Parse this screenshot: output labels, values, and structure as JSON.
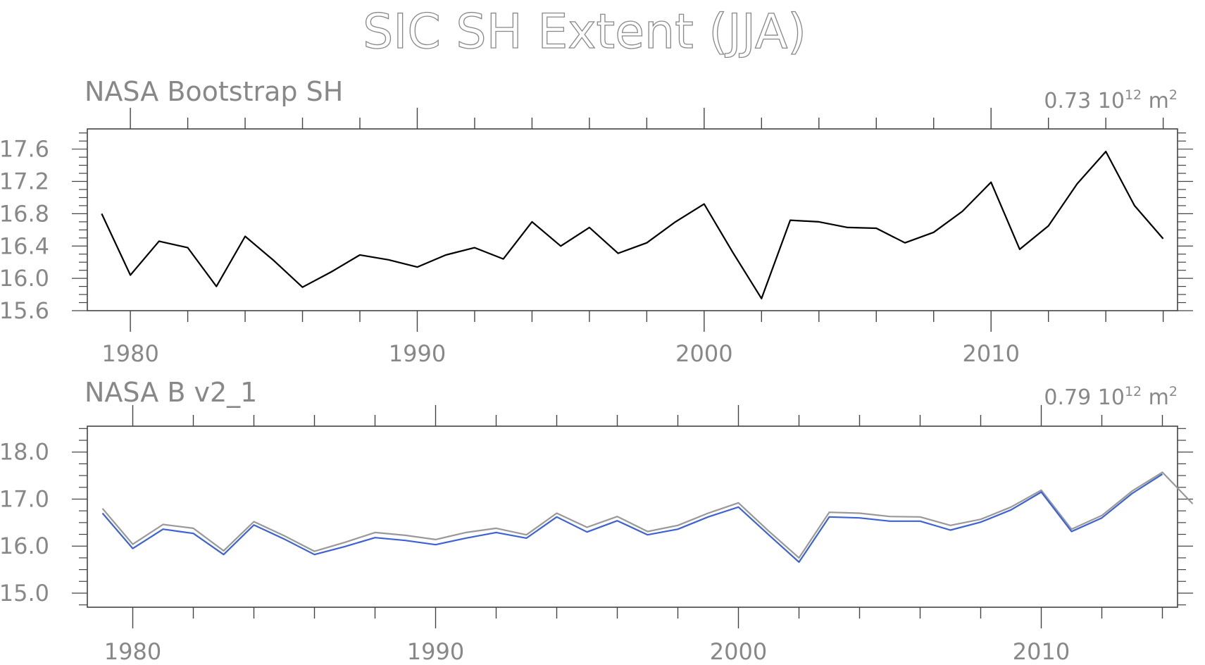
{
  "title": "SIC SH Extent (JJA)",
  "chart_data": [
    {
      "type": "line",
      "title": "NASA Bootstrap SH",
      "annotation": {
        "value": "0.73",
        "unit_base": "10",
        "unit_exp": "12",
        "unit_tail": "m",
        "unit_tail_exp": "2"
      },
      "xlim": [
        1978.5,
        2016.5
      ],
      "ylim": [
        15.6,
        17.85
      ],
      "x_ticks": [
        1980,
        1990,
        2000,
        2010
      ],
      "y_ticks": [
        "15.6",
        "16.0",
        "16.4",
        "16.8",
        "17.2",
        "17.6"
      ],
      "series": [
        {
          "color": "#000000",
          "x": [
            1979,
            1980,
            1981,
            1982,
            1983,
            1984,
            1985,
            1986,
            1987,
            1988,
            1989,
            1990,
            1991,
            1992,
            1993,
            1994,
            1995,
            1996,
            1997,
            1998,
            1999,
            2000,
            2001,
            2002,
            2003,
            2004,
            2005,
            2006,
            2007,
            2008,
            2009,
            2010,
            2011,
            2012,
            2013,
            2014,
            2015,
            2016
          ],
          "values": [
            16.8,
            16.04,
            16.46,
            16.38,
            15.9,
            16.52,
            16.22,
            15.89,
            16.08,
            16.29,
            16.23,
            16.14,
            16.29,
            16.38,
            16.24,
            16.7,
            16.4,
            16.63,
            16.31,
            16.44,
            16.7,
            16.92,
            16.32,
            15.75,
            16.72,
            16.7,
            16.63,
            16.62,
            16.44,
            16.57,
            16.83,
            17.19,
            16.36,
            16.65,
            17.17,
            17.57,
            16.9,
            16.49
          ]
        }
      ]
    },
    {
      "type": "line",
      "title": "NASA B v2_1",
      "annotation": {
        "value": "0.79",
        "unit_base": "10",
        "unit_exp": "12",
        "unit_tail": "m",
        "unit_tail_exp": "2"
      },
      "xlim": [
        1978.5,
        2014.5
      ],
      "ylim": [
        14.7,
        18.55
      ],
      "x_ticks": [
        1980,
        1990,
        2000,
        2010
      ],
      "y_ticks": [
        "15.0",
        "16.0",
        "17.0",
        "18.0"
      ],
      "series": [
        {
          "color": "#999999",
          "x": [
            1979,
            1980,
            1981,
            1982,
            1983,
            1984,
            1985,
            1986,
            1987,
            1988,
            1989,
            1990,
            1991,
            1992,
            1993,
            1994,
            1995,
            1996,
            1997,
            1998,
            1999,
            2000,
            2001,
            2002,
            2003,
            2004,
            2005,
            2006,
            2007,
            2008,
            2009,
            2010,
            2011,
            2012,
            2013,
            2014,
            2015
          ],
          "values": [
            16.8,
            16.04,
            16.46,
            16.38,
            15.9,
            16.52,
            16.22,
            15.89,
            16.08,
            16.29,
            16.23,
            16.14,
            16.29,
            16.38,
            16.24,
            16.7,
            16.4,
            16.63,
            16.31,
            16.44,
            16.7,
            16.92,
            16.32,
            15.75,
            16.72,
            16.7,
            16.63,
            16.62,
            16.44,
            16.57,
            16.83,
            17.19,
            16.36,
            16.65,
            17.17,
            17.57,
            16.9
          ]
        },
        {
          "color": "#3d62d6",
          "x": [
            1979,
            1980,
            1981,
            1982,
            1983,
            1984,
            1985,
            1986,
            1987,
            1988,
            1989,
            1990,
            1991,
            1992,
            1993,
            1994,
            1995,
            1996,
            1997,
            1998,
            1999,
            2000,
            2001,
            2002,
            2003,
            2004,
            2005,
            2006,
            2007,
            2008,
            2009,
            2010,
            2011,
            2012,
            2013,
            2014
          ],
          "values": [
            16.7,
            15.95,
            16.36,
            16.27,
            15.82,
            16.45,
            16.15,
            15.82,
            15.99,
            16.18,
            16.12,
            16.03,
            16.17,
            16.29,
            16.17,
            16.62,
            16.3,
            16.54,
            16.24,
            16.36,
            16.62,
            16.83,
            16.24,
            15.66,
            16.62,
            16.6,
            16.53,
            16.53,
            16.34,
            16.51,
            16.77,
            17.15,
            16.31,
            16.6,
            17.12,
            17.53
          ]
        }
      ]
    }
  ]
}
